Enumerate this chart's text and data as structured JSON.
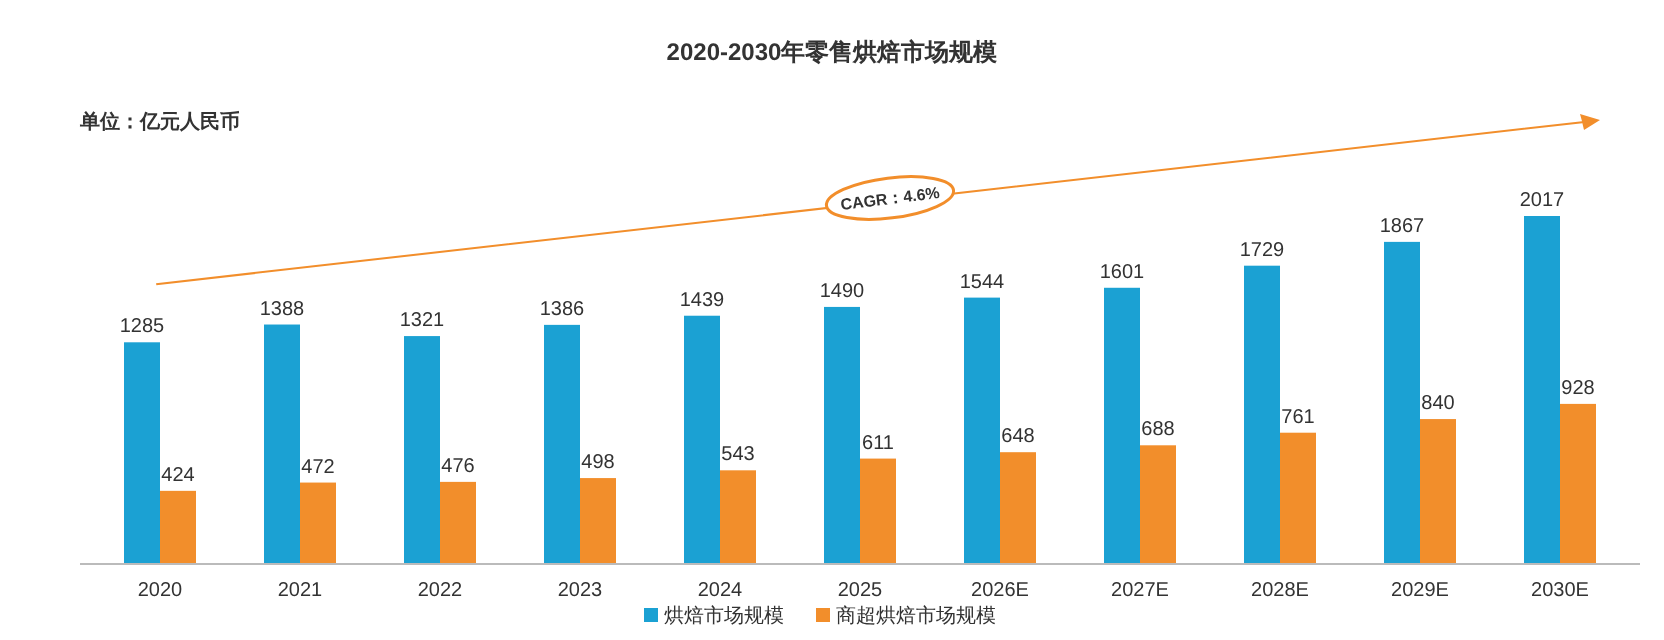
{
  "chart_data": {
    "type": "bar",
    "title": "2020-2030年零售烘焙市场规模",
    "subtitle": "单位：亿元人民币",
    "categories": [
      "2020",
      "2021",
      "2022",
      "2023",
      "2024",
      "2025",
      "2026E",
      "2027E",
      "2028E",
      "2029E",
      "2030E"
    ],
    "series": [
      {
        "name": "烘焙市场规模",
        "color": "#1ba1d3",
        "values": [
          1285,
          1388,
          1321,
          1386,
          1439,
          1490,
          1544,
          1601,
          1729,
          1867,
          2017
        ]
      },
      {
        "name": "商超烘焙市场规模",
        "color": "#f28e2b",
        "values": [
          424,
          472,
          476,
          498,
          543,
          611,
          648,
          688,
          761,
          840,
          928
        ]
      }
    ],
    "annotations": [
      "CAGR：4.6%"
    ],
    "data_labels": true,
    "legend": "bottom"
  }
}
